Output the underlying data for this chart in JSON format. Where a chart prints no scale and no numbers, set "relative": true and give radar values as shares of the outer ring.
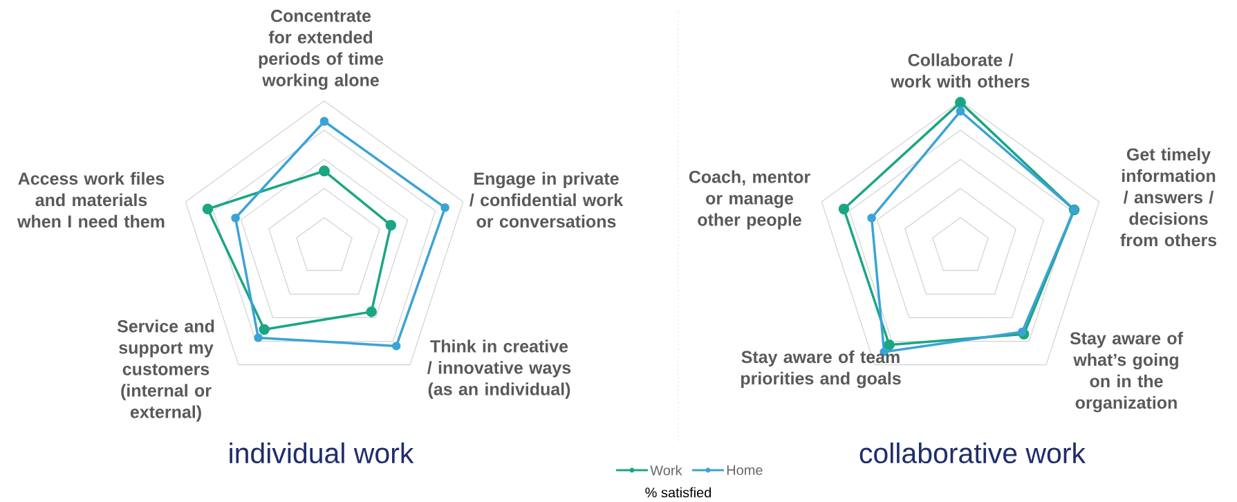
{
  "chart_data": [
    {
      "type": "radar",
      "title": "individual work",
      "relative": true,
      "grid": true,
      "marker": "circle",
      "legend": "bottom",
      "annotations": [
        "% satisfied"
      ],
      "categories": [
        "Concentrate for extended periods of time working alone",
        "Engage in private / confidential work or conversations",
        "Think in creative / innovative ways (as an individual)",
        "Service and support my customers (internal or external)",
        "Access work files and materials when I need them"
      ],
      "series": [
        {
          "name": "Work",
          "color": "#1aa683",
          "values": [
            0.52,
            0.48,
            0.55,
            0.7,
            0.84
          ]
        },
        {
          "name": "Home",
          "color": "#3ba3d6",
          "values": [
            0.86,
            0.87,
            0.84,
            0.77,
            0.64
          ]
        }
      ]
    },
    {
      "type": "radar",
      "title": "collaborative work",
      "relative": true,
      "grid": true,
      "marker": "circle",
      "categories": [
        "Collaborate / work with others",
        "Get timely information / answers / decisions from others",
        "Stay aware of what’s going on in the organization",
        "Stay aware of team priorities and goals",
        "Coach, mentor or manage other people"
      ],
      "series": [
        {
          "color": "#1aa683",
          "values": [
            0.99,
            0.82,
            0.74,
            0.83,
            0.84
          ]
        },
        {
          "color": "#3ba3d6",
          "values": [
            0.93,
            0.82,
            0.72,
            0.89,
            0.64
          ]
        }
      ]
    }
  ]
}
